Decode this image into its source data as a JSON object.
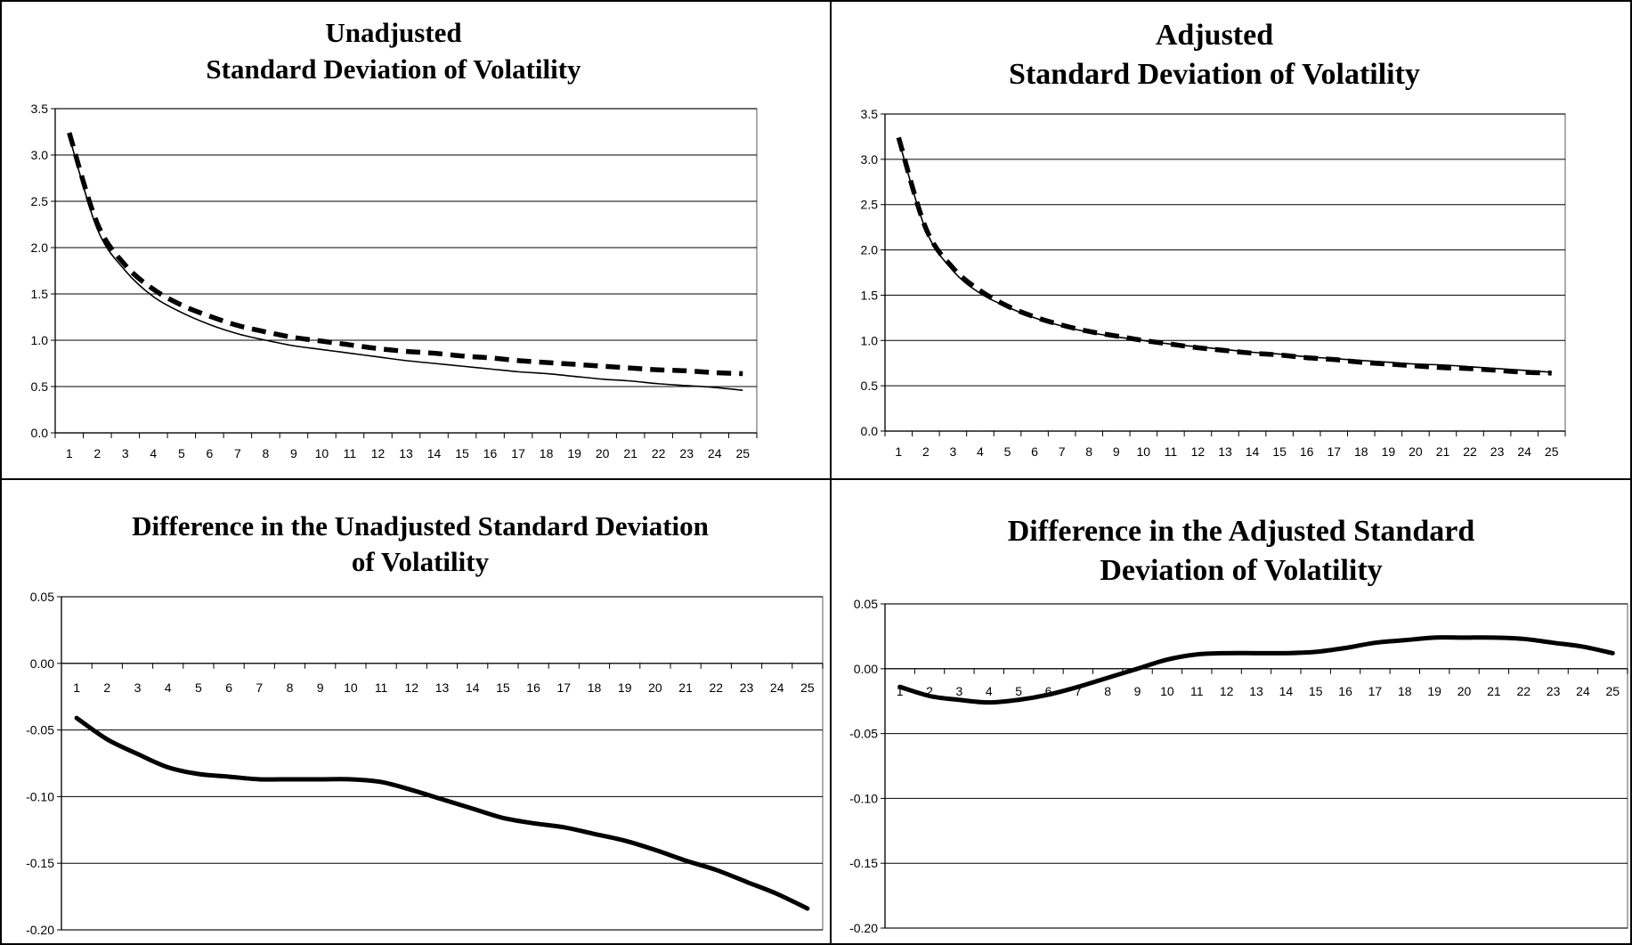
{
  "chart_data": [
    {
      "type": "line",
      "title_lines": [
        "Unadjusted",
        "Standard Deviation of Volatility"
      ],
      "x": [
        1,
        2,
        3,
        4,
        5,
        6,
        7,
        8,
        9,
        10,
        11,
        12,
        13,
        14,
        15,
        16,
        17,
        18,
        19,
        20,
        21,
        22,
        23,
        24,
        25
      ],
      "ylim": [
        0,
        3.5
      ],
      "yticks": [
        "0.0",
        "0.5",
        "1.0",
        "1.5",
        "2.0",
        "2.5",
        "3.0",
        "3.5"
      ],
      "grid": true,
      "series": [
        {
          "style": "solid",
          "values": [
            3.2,
            2.2,
            1.75,
            1.47,
            1.3,
            1.17,
            1.07,
            1.0,
            0.94,
            0.9,
            0.86,
            0.82,
            0.78,
            0.75,
            0.72,
            0.69,
            0.66,
            0.64,
            0.61,
            0.58,
            0.56,
            0.53,
            0.51,
            0.49,
            0.46
          ]
        },
        {
          "style": "dashed",
          "values": [
            3.24,
            2.26,
            1.81,
            1.55,
            1.38,
            1.26,
            1.16,
            1.09,
            1.03,
            0.99,
            0.95,
            0.91,
            0.88,
            0.86,
            0.83,
            0.81,
            0.78,
            0.76,
            0.74,
            0.72,
            0.7,
            0.68,
            0.67,
            0.65,
            0.64
          ]
        }
      ]
    },
    {
      "type": "line",
      "title_lines": [
        "Adjusted",
        "Standard Deviation of Volatility"
      ],
      "x": [
        1,
        2,
        3,
        4,
        5,
        6,
        7,
        8,
        9,
        10,
        11,
        12,
        13,
        14,
        15,
        16,
        17,
        18,
        19,
        20,
        21,
        22,
        23,
        24,
        25
      ],
      "ylim": [
        0,
        3.5
      ],
      "yticks": [
        "0.0",
        "0.5",
        "1.0",
        "1.5",
        "2.0",
        "2.5",
        "3.0",
        "3.5"
      ],
      "grid": true,
      "series": [
        {
          "style": "solid",
          "values": [
            3.22,
            2.22,
            1.77,
            1.52,
            1.37,
            1.25,
            1.16,
            1.09,
            1.04,
            1.0,
            0.96,
            0.93,
            0.9,
            0.87,
            0.85,
            0.82,
            0.8,
            0.78,
            0.76,
            0.74,
            0.73,
            0.71,
            0.69,
            0.67,
            0.65
          ]
        },
        {
          "style": "dashed",
          "values": [
            3.24,
            2.24,
            1.8,
            1.55,
            1.38,
            1.26,
            1.17,
            1.1,
            1.05,
            1.0,
            0.96,
            0.92,
            0.89,
            0.86,
            0.84,
            0.81,
            0.79,
            0.76,
            0.74,
            0.72,
            0.7,
            0.69,
            0.67,
            0.65,
            0.64
          ]
        }
      ]
    },
    {
      "type": "line",
      "title_lines": [
        "Difference in the Unadjusted Standard Deviation",
        "of Volatility"
      ],
      "x": [
        1,
        2,
        3,
        4,
        5,
        6,
        7,
        8,
        9,
        10,
        11,
        12,
        13,
        14,
        15,
        16,
        17,
        18,
        19,
        20,
        21,
        22,
        23,
        24,
        25
      ],
      "ylim": [
        -0.2,
        0.05
      ],
      "yticks": [
        "-0.20",
        "-0.15",
        "-0.10",
        "-0.05",
        "0.00",
        "0.05"
      ],
      "grid": true,
      "series": [
        {
          "style": "bold",
          "values": [
            -0.041,
            -0.057,
            -0.068,
            -0.078,
            -0.083,
            -0.085,
            -0.087,
            -0.087,
            -0.087,
            -0.087,
            -0.089,
            -0.095,
            -0.102,
            -0.109,
            -0.116,
            -0.12,
            -0.123,
            -0.128,
            -0.133,
            -0.14,
            -0.148,
            -0.155,
            -0.164,
            -0.173,
            -0.184
          ]
        }
      ]
    },
    {
      "type": "line",
      "title_lines": [
        "Difference in the Adjusted Standard",
        "Deviation of Volatility"
      ],
      "x": [
        1,
        2,
        3,
        4,
        5,
        6,
        7,
        8,
        9,
        10,
        11,
        12,
        13,
        14,
        15,
        16,
        17,
        18,
        19,
        20,
        21,
        22,
        23,
        24,
        25
      ],
      "ylim": [
        -0.2,
        0.05
      ],
      "yticks": [
        "-0.20",
        "-0.15",
        "-0.10",
        "-0.05",
        "0.00",
        "0.05"
      ],
      "grid": true,
      "series": [
        {
          "style": "bold",
          "values": [
            -0.014,
            -0.021,
            -0.024,
            -0.026,
            -0.024,
            -0.02,
            -0.014,
            -0.007,
            0.0,
            0.007,
            0.011,
            0.012,
            0.012,
            0.012,
            0.013,
            0.016,
            0.02,
            0.022,
            0.024,
            0.024,
            0.024,
            0.023,
            0.02,
            0.017,
            0.012
          ]
        }
      ]
    }
  ]
}
